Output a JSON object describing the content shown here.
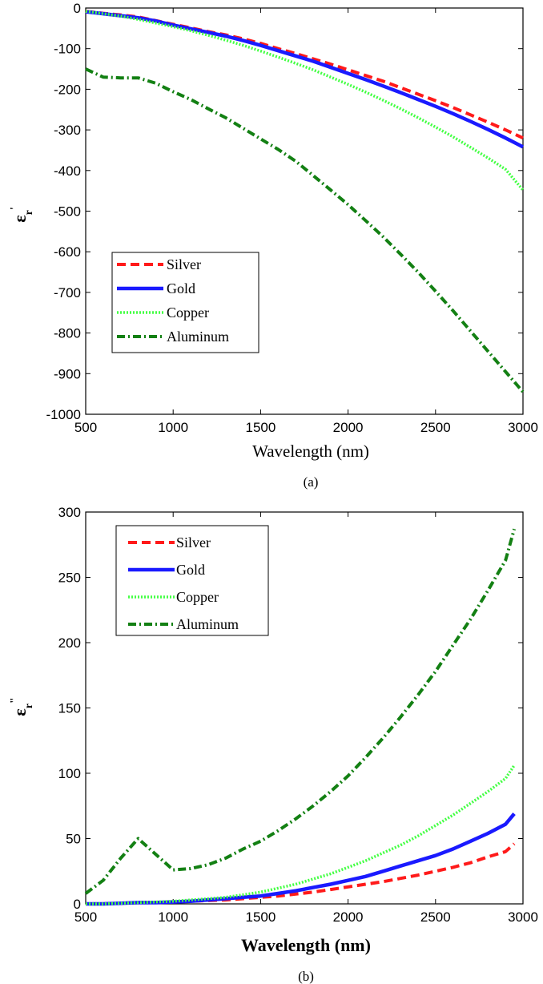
{
  "colors": {
    "Silver": "#ff1a1a",
    "Gold": "#1a1aff",
    "Copper": "#44ff44",
    "Aluminum": "#138013"
  },
  "chart_data": [
    {
      "type": "line",
      "caption": "(a)",
      "xlabel": "Wavelength (nm)",
      "ylabel": "ε",
      "ylabel_sub": "r",
      "ylabel_sup": "'",
      "xlim": [
        500,
        3000
      ],
      "ylim": [
        -1000,
        0
      ],
      "xticks": [
        "500",
        "1000",
        "1500",
        "2000",
        "2500",
        "3000"
      ],
      "yticks": [
        "0",
        "-100",
        "-200",
        "-300",
        "-400",
        "-500",
        "-600",
        "-700",
        "-800",
        "-900",
        "-1000"
      ],
      "legend_position": "lower-left",
      "x": [
        500,
        600,
        700,
        800,
        900,
        1000,
        1100,
        1200,
        1300,
        1400,
        1500,
        1600,
        1700,
        1800,
        1900,
        2000,
        2100,
        2200,
        2300,
        2400,
        2500,
        2600,
        2700,
        2800,
        2900,
        3000
      ],
      "series": [
        {
          "name": "Silver",
          "style": "dashed",
          "values": [
            -8,
            -13,
            -17,
            -22,
            -31,
            -40,
            -49,
            -58,
            -66,
            -76,
            -87,
            -100,
            -112,
            -125,
            -138,
            -152,
            -166,
            -180,
            -196,
            -212,
            -228,
            -245,
            -263,
            -281,
            -300,
            -320
          ]
        },
        {
          "name": "Gold",
          "style": "solid",
          "values": [
            -9,
            -14,
            -19,
            -24,
            -32,
            -42,
            -51,
            -60,
            -69,
            -80,
            -92,
            -105,
            -118,
            -131,
            -146,
            -161,
            -176,
            -192,
            -208,
            -225,
            -242,
            -260,
            -279,
            -299,
            -320,
            -342
          ]
        },
        {
          "name": "Copper",
          "style": "dotted",
          "values": [
            -8,
            -14,
            -20,
            -28,
            -37,
            -46,
            -56,
            -67,
            -79,
            -92,
            -106,
            -121,
            -136,
            -152,
            -170,
            -188,
            -207,
            -227,
            -248,
            -270,
            -293,
            -317,
            -343,
            -369,
            -397,
            -448
          ]
        },
        {
          "name": "Aluminum",
          "style": "dashdot",
          "values": [
            -150,
            -170,
            -172,
            -172,
            -185,
            -206,
            -225,
            -248,
            -270,
            -296,
            -322,
            -348,
            -377,
            -412,
            -448,
            -484,
            -523,
            -563,
            -606,
            -650,
            -697,
            -745,
            -795,
            -845,
            -895,
            -945
          ]
        }
      ]
    },
    {
      "type": "line",
      "caption": "(b)",
      "xlabel": "Wavelength (nm)",
      "ylabel": "ε",
      "ylabel_sub": "r",
      "ylabel_sup": "\"",
      "xlim": [
        500,
        3000
      ],
      "ylim": [
        0,
        300
      ],
      "xticks": [
        "500",
        "1000",
        "1500",
        "2000",
        "2500",
        "3000"
      ],
      "yticks": [
        "0",
        "50",
        "100",
        "150",
        "200",
        "250",
        "300"
      ],
      "legend_position": "top-left",
      "x": [
        500,
        600,
        700,
        800,
        900,
        1000,
        1100,
        1200,
        1300,
        1400,
        1500,
        1600,
        1700,
        1800,
        1900,
        2000,
        2100,
        2200,
        2300,
        2400,
        2500,
        2600,
        2700,
        2800,
        2900,
        2950
      ],
      "series": [
        {
          "name": "Silver",
          "style": "dashed",
          "values": [
            0,
            0,
            0.5,
            1,
            1,
            1.5,
            2,
            2.5,
            3,
            4,
            5,
            6,
            7.5,
            9,
            11,
            13,
            15,
            17,
            19.5,
            22,
            25,
            28,
            31.5,
            36,
            40,
            46
          ]
        },
        {
          "name": "Gold",
          "style": "solid",
          "values": [
            0,
            0,
            0.5,
            1,
            1,
            1.5,
            2,
            3,
            4,
            5,
            6,
            8,
            10,
            12.5,
            15,
            18,
            21,
            25,
            29,
            33,
            37,
            42,
            48,
            54,
            61,
            69
          ]
        },
        {
          "name": "Copper",
          "style": "dotted",
          "values": [
            0,
            0,
            0.5,
            1,
            1.5,
            2,
            3,
            4,
            5,
            7,
            9,
            12,
            15,
            19,
            23,
            28,
            33,
            39,
            45,
            52,
            60,
            68,
            77,
            86,
            96,
            106
          ]
        },
        {
          "name": "Aluminum",
          "style": "dashdot",
          "values": [
            8,
            18,
            35,
            50,
            38,
            26,
            27,
            30,
            35,
            42,
            48,
            56,
            65,
            75,
            86,
            98,
            112,
            127,
            143,
            160,
            178,
            198,
            218,
            240,
            263,
            287
          ]
        }
      ]
    }
  ]
}
